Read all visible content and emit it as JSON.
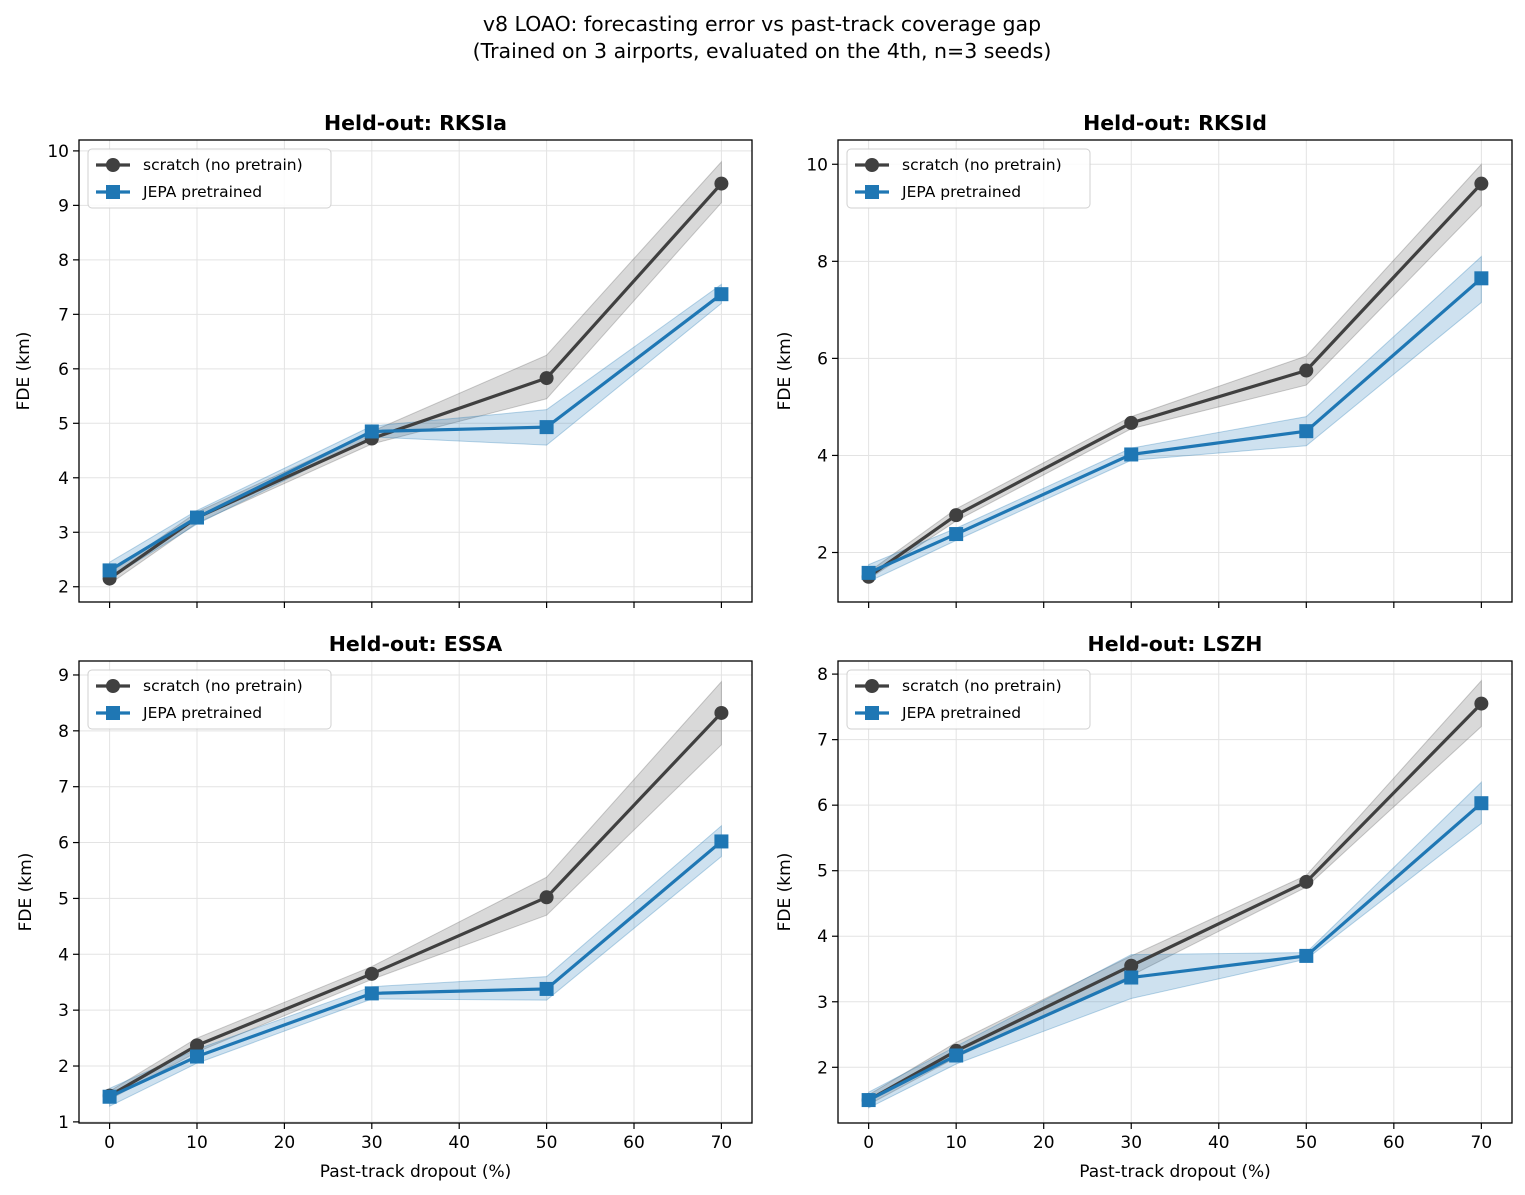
{
  "figure": {
    "title_line1": "v8 LOAO: forecasting error vs past-track coverage gap",
    "title_line2": "(Trained on 3 airports, evaluated on the 4th, n=3 seeds)"
  },
  "chart_data": [
    {
      "type": "line",
      "title": "Held-out: RKSIa",
      "xlabel": "",
      "ylabel": "FDE (km)",
      "x": [
        0,
        10,
        30,
        50,
        70
      ],
      "xlim": [
        -3.5,
        73.5
      ],
      "ylim": [
        1.72,
        10.2
      ],
      "yticks": [
        2,
        3,
        4,
        5,
        6,
        7,
        8,
        9,
        10
      ],
      "xticks": [
        0,
        10,
        20,
        30,
        40,
        50,
        60,
        70
      ],
      "show_xticklabels": false,
      "grid": true,
      "legend_position": "upper-left",
      "series": [
        {
          "name": "scratch (no pretrain)",
          "color": "#404040",
          "marker": "circle",
          "values": [
            2.15,
            3.27,
            4.72,
            5.83,
            9.4
          ],
          "lower": [
            2.05,
            3.17,
            4.62,
            5.45,
            9.05
          ],
          "upper": [
            2.25,
            3.37,
            4.85,
            6.25,
            9.8
          ]
        },
        {
          "name": "JEPA pretrained",
          "color": "#1f77b4",
          "marker": "square",
          "values": [
            2.3,
            3.27,
            4.85,
            4.93,
            7.37
          ],
          "lower": [
            2.15,
            3.15,
            4.75,
            4.6,
            7.2
          ],
          "upper": [
            2.45,
            3.4,
            4.95,
            5.25,
            7.55
          ]
        }
      ]
    },
    {
      "type": "line",
      "title": "Held-out: RKSId",
      "xlabel": "",
      "ylabel": "FDE (km)",
      "x": [
        0,
        10,
        30,
        50,
        70
      ],
      "xlim": [
        -3.5,
        73.5
      ],
      "ylim": [
        0.98,
        10.5
      ],
      "yticks": [
        2,
        4,
        6,
        8,
        10
      ],
      "xticks": [
        0,
        10,
        20,
        30,
        40,
        50,
        60,
        70
      ],
      "show_xticklabels": false,
      "grid": true,
      "legend_position": "upper-left",
      "series": [
        {
          "name": "scratch (no pretrain)",
          "color": "#404040",
          "marker": "circle",
          "values": [
            1.5,
            2.77,
            4.67,
            5.75,
            9.6
          ],
          "lower": [
            1.45,
            2.65,
            4.55,
            5.45,
            9.15
          ],
          "upper": [
            1.6,
            2.9,
            4.8,
            6.05,
            10.0
          ]
        },
        {
          "name": "JEPA pretrained",
          "color": "#1f77b4",
          "marker": "square",
          "values": [
            1.58,
            2.38,
            4.02,
            4.5,
            7.65
          ],
          "lower": [
            1.4,
            2.25,
            3.9,
            4.2,
            7.15
          ],
          "upper": [
            1.75,
            2.5,
            4.15,
            4.8,
            8.1
          ]
        }
      ]
    },
    {
      "type": "line",
      "title": "Held-out: ESSA",
      "xlabel": "Past-track dropout (%)",
      "ylabel": "FDE (km)",
      "x": [
        0,
        10,
        30,
        50,
        70
      ],
      "xlim": [
        -3.5,
        73.5
      ],
      "ylim": [
        0.98,
        9.25
      ],
      "yticks": [
        1,
        2,
        3,
        4,
        5,
        6,
        7,
        8,
        9
      ],
      "xticks": [
        0,
        10,
        20,
        30,
        40,
        50,
        60,
        70
      ],
      "show_xticklabels": true,
      "grid": true,
      "legend_position": "upper-left",
      "series": [
        {
          "name": "scratch (no pretrain)",
          "color": "#404040",
          "marker": "circle",
          "values": [
            1.47,
            2.37,
            3.65,
            5.02,
            8.32
          ],
          "lower": [
            1.4,
            2.25,
            3.55,
            4.7,
            7.75
          ],
          "upper": [
            1.55,
            2.5,
            3.78,
            5.38,
            8.88
          ]
        },
        {
          "name": "JEPA pretrained",
          "color": "#1f77b4",
          "marker": "square",
          "values": [
            1.45,
            2.17,
            3.3,
            3.38,
            6.02
          ],
          "lower": [
            1.28,
            2.05,
            3.2,
            3.18,
            5.75
          ],
          "upper": [
            1.6,
            2.3,
            3.42,
            3.6,
            6.3
          ]
        }
      ]
    },
    {
      "type": "line",
      "title": "Held-out: LSZH",
      "xlabel": "Past-track dropout (%)",
      "ylabel": "FDE (km)",
      "x": [
        0,
        10,
        30,
        50,
        70
      ],
      "xlim": [
        -3.5,
        73.5
      ],
      "ylim": [
        1.15,
        8.2
      ],
      "yticks": [
        2,
        3,
        4,
        5,
        6,
        7,
        8
      ],
      "xticks": [
        0,
        10,
        20,
        30,
        40,
        50,
        60,
        70
      ],
      "show_xticklabels": true,
      "grid": true,
      "legend_position": "upper-left",
      "series": [
        {
          "name": "scratch (no pretrain)",
          "color": "#404040",
          "marker": "circle",
          "values": [
            1.5,
            2.25,
            3.55,
            4.83,
            7.55
          ],
          "lower": [
            1.43,
            2.15,
            3.4,
            4.75,
            7.2
          ],
          "upper": [
            1.58,
            2.38,
            3.7,
            4.93,
            7.9
          ]
        },
        {
          "name": "JEPA pretrained",
          "color": "#1f77b4",
          "marker": "square",
          "values": [
            1.5,
            2.18,
            3.37,
            3.7,
            6.03
          ],
          "lower": [
            1.38,
            2.05,
            3.05,
            3.65,
            5.72
          ],
          "upper": [
            1.62,
            2.32,
            3.72,
            3.75,
            6.35
          ]
        }
      ]
    }
  ]
}
